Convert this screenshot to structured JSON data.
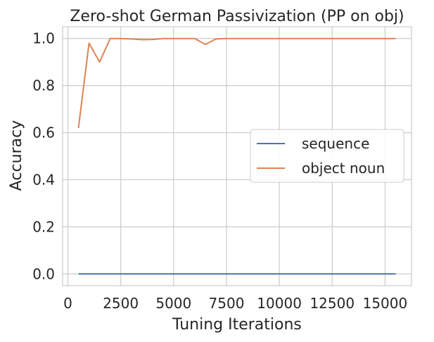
{
  "chart_data": {
    "type": "line",
    "title": "Zero-shot German Passivization (PP on obj)",
    "xlabel": "Tuning Iterations",
    "ylabel": "Accuracy",
    "xlim": [
      -250,
      16250
    ],
    "ylim": [
      -0.05,
      1.05
    ],
    "xticks": [
      0,
      2500,
      5000,
      7500,
      10000,
      12500,
      15000
    ],
    "yticks": [
      0.0,
      0.2,
      0.4,
      0.6,
      0.8,
      1.0
    ],
    "xtick_labels": [
      "0",
      "2500",
      "5000",
      "7500",
      "10000",
      "12500",
      "15000"
    ],
    "ytick_labels": [
      "0.0",
      "0.2",
      "0.4",
      "0.6",
      "0.8",
      "1.0"
    ],
    "grid": true,
    "legend_position": "center-right",
    "series": [
      {
        "name": "sequence",
        "color": "#4c72b0",
        "x": [
          500,
          1000,
          1500,
          2000,
          2500,
          3000,
          3500,
          4000,
          4500,
          5000,
          5500,
          6000,
          6500,
          7000,
          7500,
          8000,
          8500,
          9000,
          9500,
          10000,
          10500,
          11000,
          11500,
          12000,
          12500,
          13000,
          13500,
          14000,
          14500,
          15000,
          15500
        ],
        "values": [
          0,
          0,
          0,
          0,
          0,
          0,
          0,
          0,
          0,
          0,
          0,
          0,
          0,
          0,
          0,
          0,
          0,
          0,
          0,
          0,
          0,
          0,
          0,
          0,
          0,
          0,
          0,
          0,
          0,
          0,
          0
        ]
      },
      {
        "name": "object noun",
        "color": "#dd8452",
        "x": [
          500,
          1000,
          1500,
          2000,
          2500,
          3000,
          3500,
          4000,
          4500,
          5000,
          5500,
          6000,
          6500,
          7000,
          7500,
          8000,
          8500,
          9000,
          9500,
          10000,
          10500,
          11000,
          11500,
          12000,
          12500,
          13000,
          13500,
          14000,
          14500,
          15000,
          15500
        ],
        "values": [
          0.62,
          0.98,
          0.9,
          1.0,
          1.0,
          0.998,
          0.995,
          0.996,
          1.0,
          1.0,
          1.0,
          1.0,
          0.975,
          0.998,
          1.0,
          1.0,
          1.0,
          1.0,
          1.0,
          1.0,
          1.0,
          1.0,
          1.0,
          1.0,
          1.0,
          1.0,
          1.0,
          1.0,
          1.0,
          1.0,
          1.0
        ]
      }
    ]
  }
}
